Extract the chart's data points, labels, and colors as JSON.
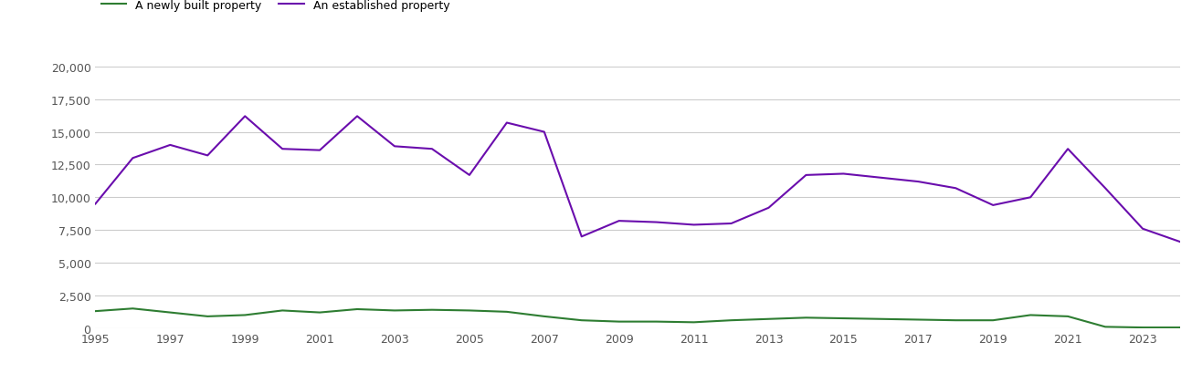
{
  "years": [
    1995,
    1996,
    1997,
    1998,
    1999,
    2000,
    2001,
    2002,
    2003,
    2004,
    2005,
    2006,
    2007,
    2008,
    2009,
    2010,
    2011,
    2012,
    2013,
    2014,
    2015,
    2016,
    2017,
    2018,
    2019,
    2020,
    2021,
    2022,
    2023,
    2024
  ],
  "newly_built": [
    1300,
    1500,
    1200,
    900,
    1000,
    1350,
    1200,
    1450,
    1350,
    1400,
    1350,
    1250,
    900,
    600,
    500,
    500,
    450,
    600,
    700,
    800,
    750,
    700,
    650,
    600,
    600,
    1000,
    900,
    100,
    50,
    50
  ],
  "established": [
    9500,
    13000,
    14000,
    13200,
    16200,
    13700,
    13600,
    16200,
    13900,
    13700,
    11700,
    15700,
    15000,
    7000,
    8200,
    8100,
    7900,
    8000,
    9200,
    11700,
    11800,
    11500,
    11200,
    10700,
    9400,
    10000,
    13700,
    10700,
    7600,
    6600
  ],
  "newly_built_color": "#2e7d32",
  "established_color": "#6a0dad",
  "newly_built_label": "A newly built property",
  "established_label": "An established property",
  "ylim": [
    0,
    20000
  ],
  "yticks": [
    0,
    2500,
    5000,
    7500,
    10000,
    12500,
    15000,
    17500,
    20000
  ],
  "xticks": [
    1995,
    1997,
    1999,
    2001,
    2003,
    2005,
    2007,
    2009,
    2011,
    2013,
    2015,
    2017,
    2019,
    2021,
    2023
  ],
  "xlim": [
    1995,
    2024
  ],
  "background_color": "#ffffff",
  "grid_color": "#cccccc",
  "line_width": 1.5,
  "tick_label_color": "#555555",
  "tick_label_size": 9
}
